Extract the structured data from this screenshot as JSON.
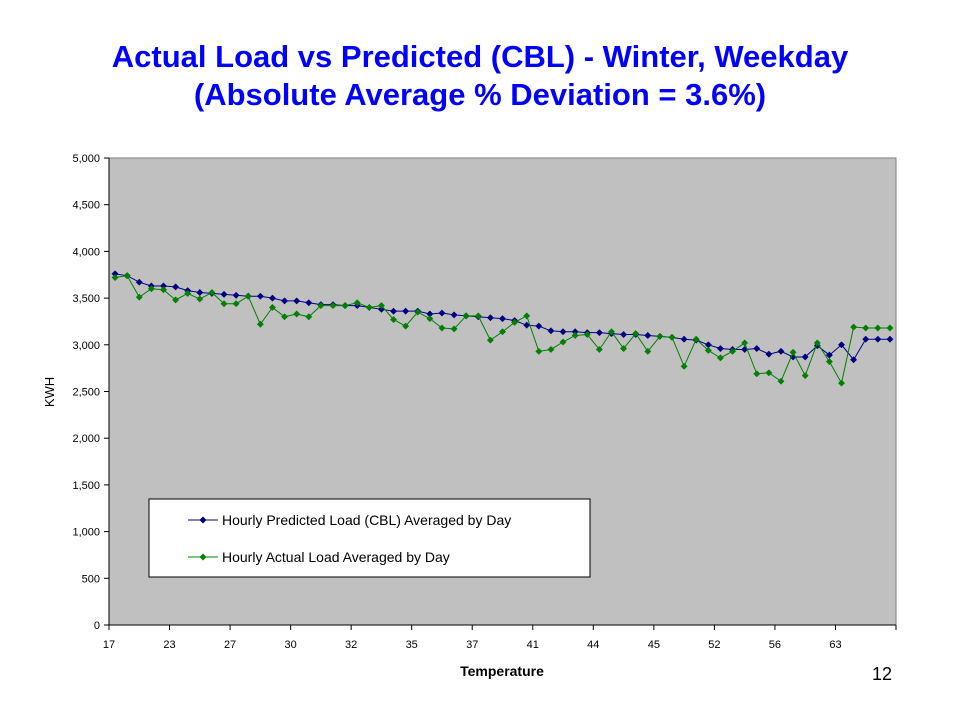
{
  "slide": {
    "title_line1": "Actual Load vs Predicted (CBL) - Winter, Weekday",
    "title_line2": "(Absolute Average % Deviation = 3.6%)",
    "page_number": "12"
  },
  "chart_data": {
    "type": "line",
    "xlabel": "Temperature",
    "ylabel": "KWH",
    "ylim": [
      0,
      5000
    ],
    "y_ticks": [
      0,
      500,
      1000,
      1500,
      2000,
      2500,
      3000,
      3500,
      4000,
      4500,
      5000
    ],
    "y_tick_labels": [
      "0",
      "500",
      "1,000",
      "1,500",
      "2,000",
      "2,500",
      "3,000",
      "3,500",
      "4,000",
      "4,500",
      "5,000"
    ],
    "x": [
      "17",
      "17",
      "18",
      "18",
      "18",
      "23",
      "23",
      "23",
      "24",
      "25",
      "27",
      "27",
      "27",
      "27",
      "28",
      "30",
      "30",
      "30",
      "30",
      "30",
      "32",
      "32",
      "32",
      "33",
      "33",
      "35",
      "35",
      "35",
      "35",
      "36",
      "37",
      "37",
      "37",
      "37",
      "40",
      "41",
      "41",
      "41",
      "41",
      "42",
      "44",
      "44",
      "44",
      "44",
      "44",
      "45",
      "45",
      "45",
      "46",
      "48",
      "52",
      "52",
      "52",
      "52",
      "53",
      "56",
      "56",
      "56",
      "57",
      "57",
      "63",
      "63",
      "63",
      "63",
      "64"
    ],
    "x_tick_labels": [
      "17",
      "23",
      "27",
      "30",
      "32",
      "35",
      "37",
      "41",
      "44",
      "45",
      "52",
      "56",
      "63"
    ],
    "x_tick_every": 5,
    "grid": false,
    "legend_position": "bottom-left",
    "series": [
      {
        "name": "Hourly Predicted Load (CBL) Averaged by Day",
        "color": "#000080",
        "marker": "diamond",
        "values": [
          3760,
          3740,
          3670,
          3630,
          3630,
          3620,
          3580,
          3560,
          3550,
          3540,
          3530,
          3520,
          3520,
          3500,
          3470,
          3470,
          3450,
          3430,
          3430,
          3420,
          3420,
          3400,
          3380,
          3360,
          3360,
          3360,
          3330,
          3340,
          3320,
          3310,
          3300,
          3290,
          3280,
          3260,
          3210,
          3200,
          3150,
          3140,
          3140,
          3130,
          3130,
          3120,
          3110,
          3110,
          3100,
          3090,
          3080,
          3060,
          3050,
          3000,
          2960,
          2950,
          2950,
          2960,
          2900,
          2930,
          2870,
          2870,
          2990,
          2890,
          3000,
          2840,
          3060,
          3060,
          3060
        ]
      },
      {
        "name": "Hourly Actual Load Averaged by Day",
        "color": "#008000",
        "marker": "diamond",
        "values": [
          3720,
          3740,
          3510,
          3600,
          3590,
          3480,
          3550,
          3490,
          3560,
          3440,
          3440,
          3520,
          3220,
          3400,
          3300,
          3330,
          3300,
          3420,
          3420,
          3420,
          3450,
          3400,
          3420,
          3270,
          3200,
          3350,
          3280,
          3180,
          3170,
          3310,
          3310,
          3050,
          3140,
          3240,
          3310,
          2930,
          2950,
          3030,
          3100,
          3110,
          2950,
          3140,
          2960,
          3120,
          2930,
          3090,
          3080,
          2770,
          3060,
          2940,
          2860,
          2930,
          3020,
          2690,
          2700,
          2610,
          2920,
          2670,
          3020,
          2820,
          2590,
          3190,
          3180,
          3180,
          3180
        ]
      }
    ]
  }
}
